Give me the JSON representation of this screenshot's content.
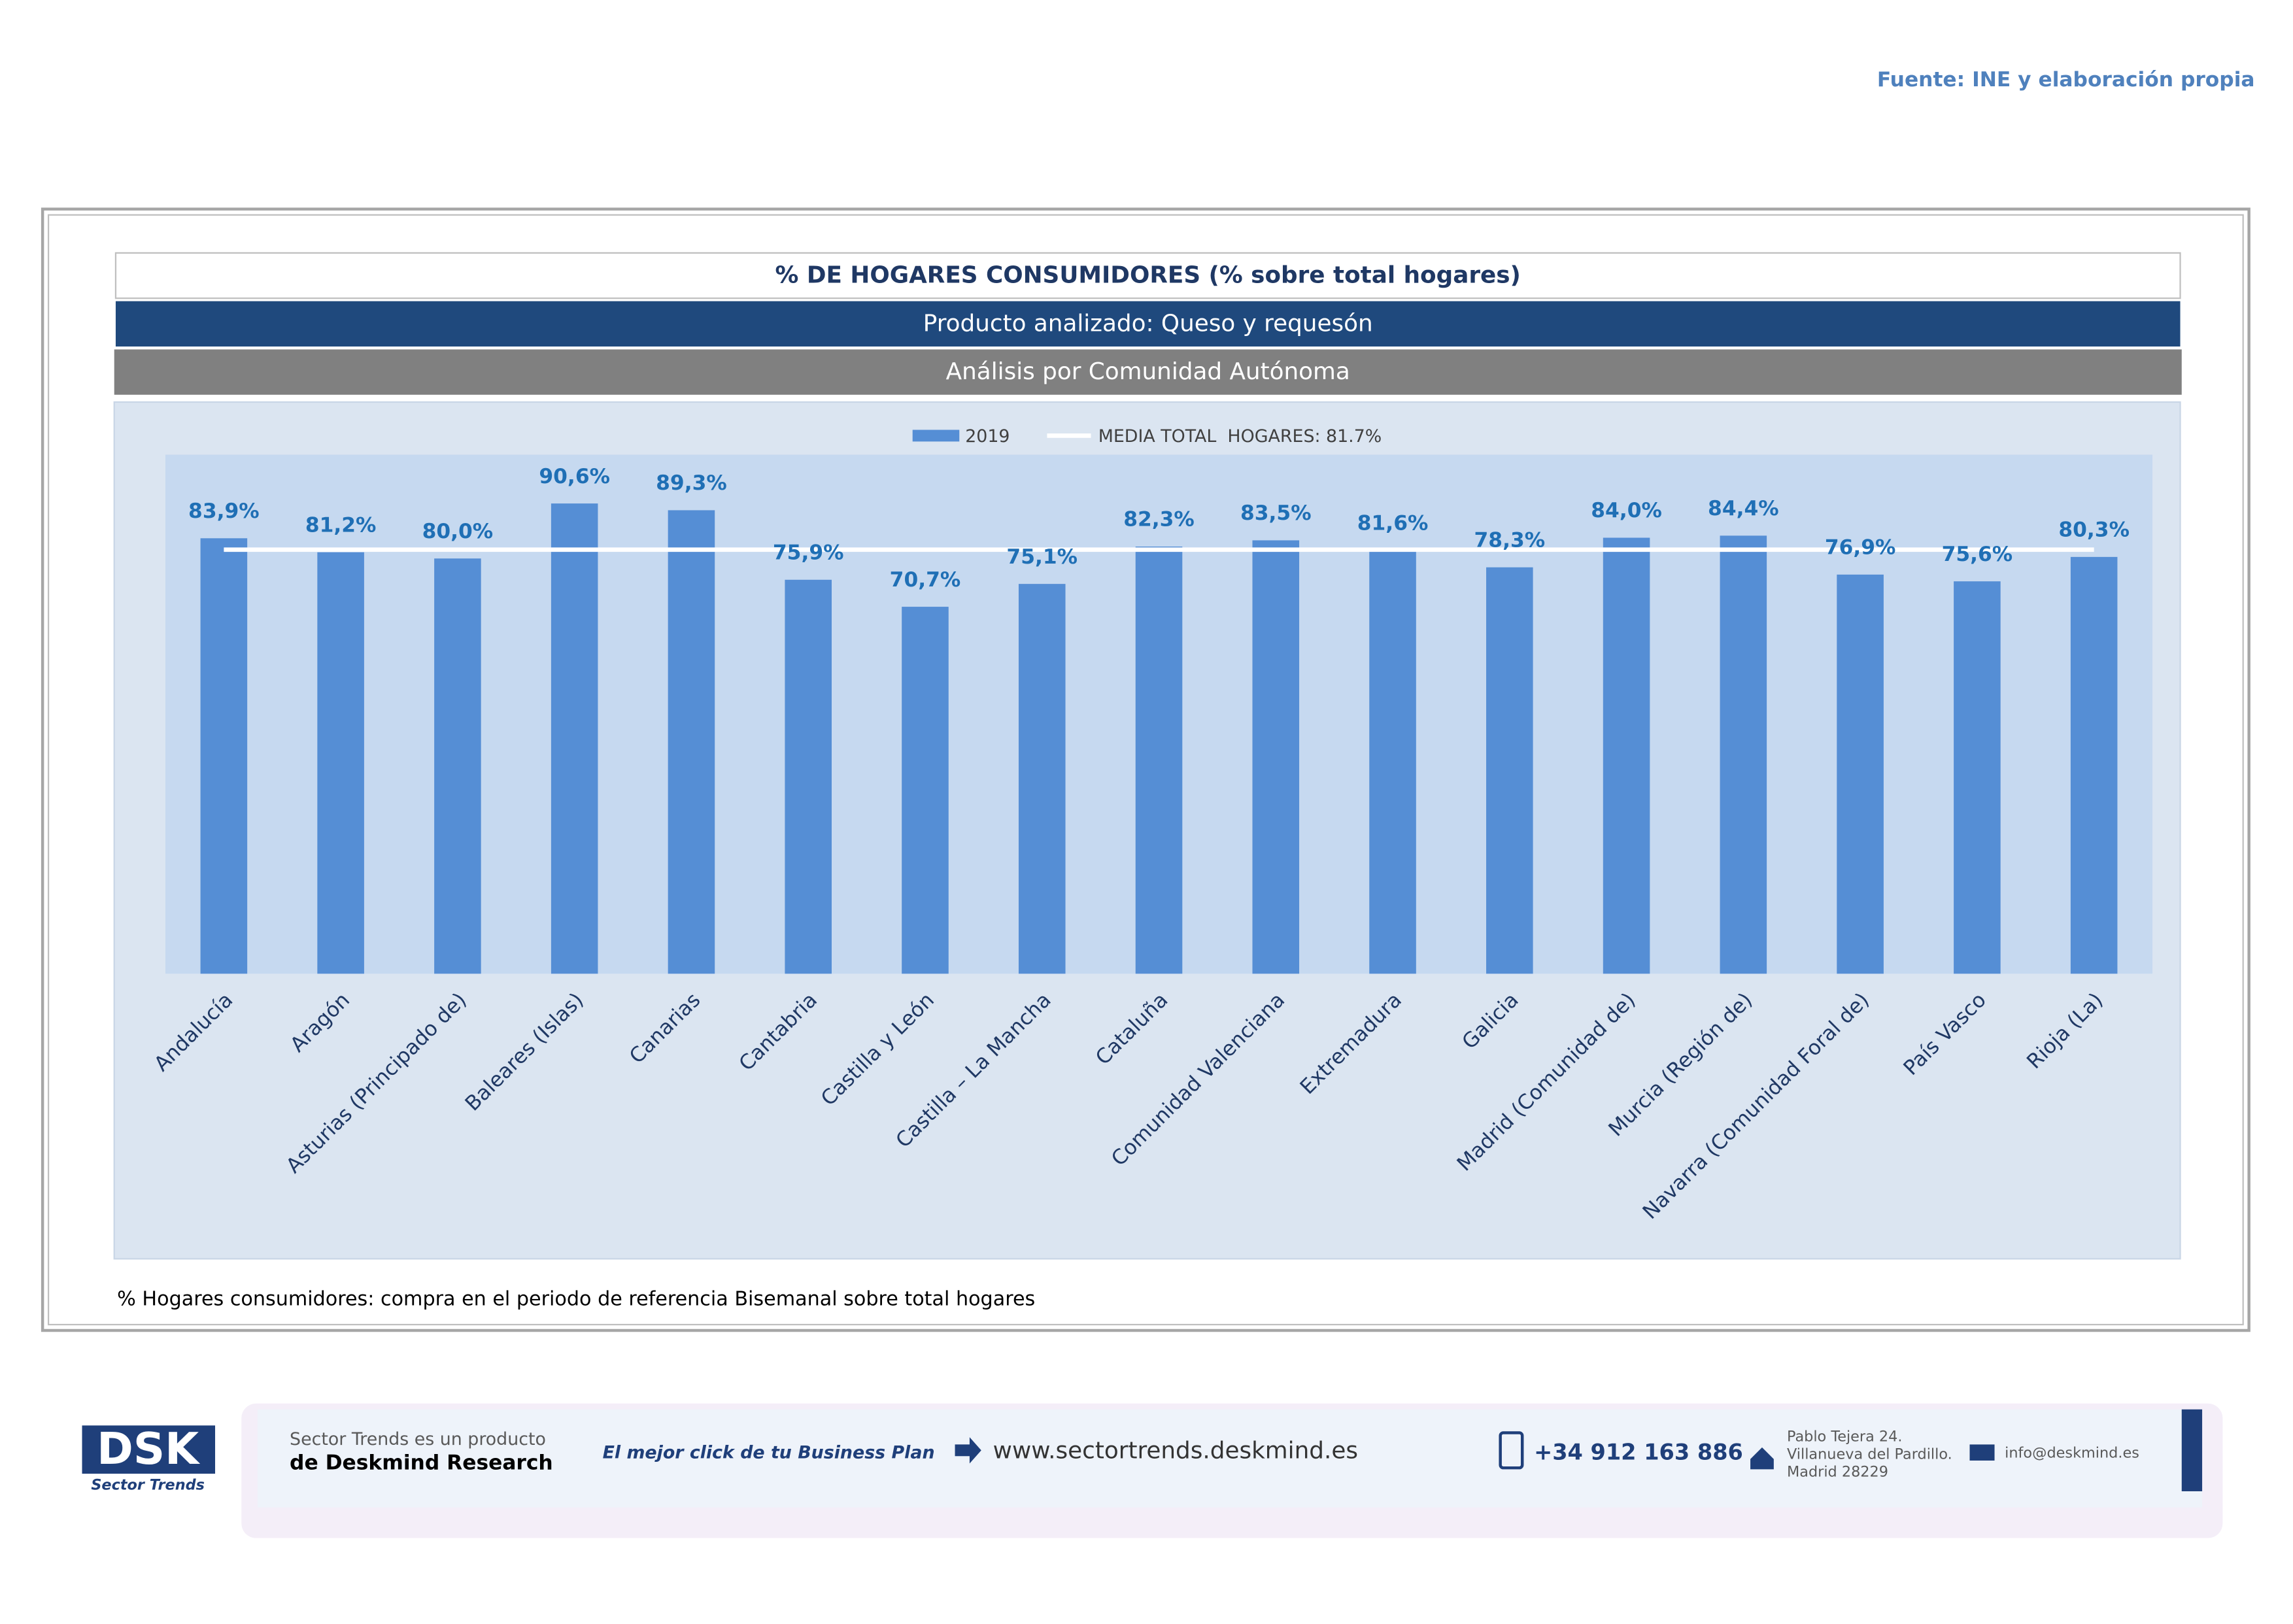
{
  "source": "Fuente: INE y elaboración propia",
  "header": {
    "title": "% DE HOGARES CONSUMIDORES (% sobre total hogares)",
    "product": "Producto analizado: Queso y requesón",
    "analysis": "Análisis por Comunidad Autónoma"
  },
  "chart_data": {
    "type": "bar",
    "ylim": [
      0,
      100
    ],
    "categories": [
      "Andalucía",
      "Aragón",
      "Asturias (Principado de)",
      "Baleares (Islas)",
      "Canarias",
      "Cantabria",
      "Castilla y León",
      "Castilla – La Mancha",
      "Cataluña",
      "Comunidad Valenciana",
      "Extremadura",
      "Galicia",
      "Madrid (Comunidad de)",
      "Murcia (Región de)",
      "Navarra (Comunidad Foral de)",
      "País Vasco",
      "Rioja (La)"
    ],
    "series": [
      {
        "name": "2019",
        "color": "#558ed5",
        "values": [
          83.9,
          81.2,
          80.0,
          90.6,
          89.3,
          75.9,
          70.7,
          75.1,
          82.3,
          83.5,
          81.6,
          78.3,
          84.0,
          84.4,
          76.9,
          75.6,
          80.3
        ],
        "value_labels": [
          "83,9%",
          "81,2%",
          "80,0%",
          "90,6%",
          "89,3%",
          "75,9%",
          "70,7%",
          "75,1%",
          "82,3%",
          "83,5%",
          "81,6%",
          "78,3%",
          "84,0%",
          "84,4%",
          "76,9%",
          "75,6%",
          "80,3%"
        ]
      }
    ],
    "mean_line": {
      "name": "MEDIA TOTAL  HOGARES: 81.7%",
      "value": 81.7,
      "color": "#ffffff"
    }
  },
  "footnote": "% Hogares consumidores: compra en el periodo de referencia Bisemanal sobre total hogares",
  "footer": {
    "logo": "DSK",
    "logo_sub": "Sector Trends",
    "product_line1": "Sector Trends es un producto",
    "product_line2": "de Deskmind Research",
    "slogan": "El mejor click de tu Business Plan",
    "web": "www.sectortrends.deskmind.es",
    "phone": "+34 912 163 886",
    "address": [
      "Pablo Tejera 24.",
      "Villanueva del Pardillo.",
      "Madrid 28229"
    ],
    "email": "info@deskmind.es"
  }
}
